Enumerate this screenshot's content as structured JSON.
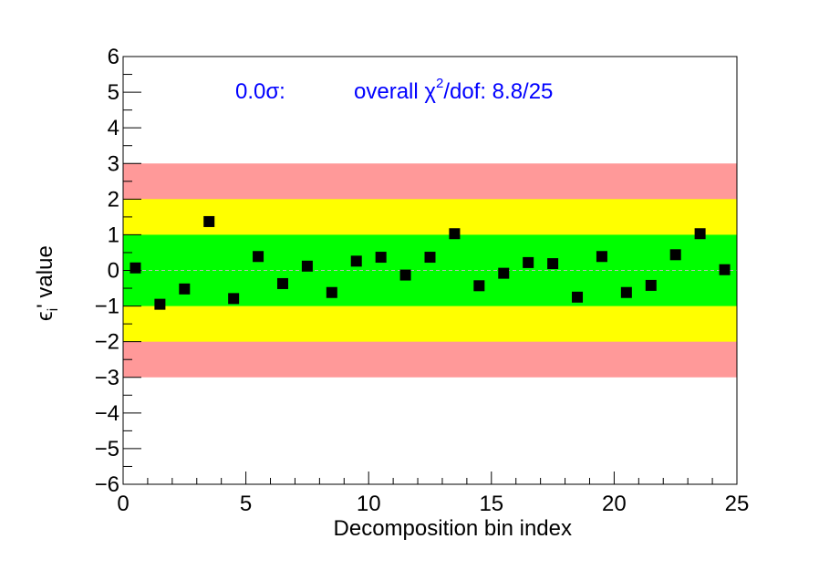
{
  "chart_data": {
    "type": "scatter",
    "xlabel": "Decomposition bin index",
    "ylabel_main": "ϵ",
    "ylabel_sub": "i",
    "ylabel_rest": "' value",
    "xlim": [
      0,
      25
    ],
    "ylim": [
      -6,
      6
    ],
    "x_ticks": [
      "0",
      "5",
      "10",
      "15",
      "20",
      "25"
    ],
    "y_ticks": [
      "−6",
      "−5",
      "−4",
      "−3",
      "−2",
      "−1",
      "0",
      "1",
      "2",
      "3",
      "4",
      "5",
      "6"
    ],
    "bands": [
      {
        "from": -3,
        "to": 3,
        "color": "#ff9999"
      },
      {
        "from": -2,
        "to": 2,
        "color": "#ffff00"
      },
      {
        "from": -1,
        "to": 1,
        "color": "#00ff00"
      }
    ],
    "annotation_sigma": "0.0σ:",
    "annotation_chi2_prefix": "overall χ",
    "annotation_chi2_sup": "2",
    "annotation_chi2_suffix": "/dof: 8.8/25",
    "annotation_color": "#0000ff",
    "marker_color": "#000000",
    "points": {
      "x": [
        0.5,
        1.5,
        2.5,
        3.5,
        4.5,
        5.5,
        6.5,
        7.5,
        8.5,
        9.5,
        10.5,
        11.5,
        12.5,
        13.5,
        14.5,
        15.5,
        16.5,
        17.5,
        18.5,
        19.5,
        20.5,
        21.5,
        22.5,
        23.5,
        24.5
      ],
      "y": [
        0.07,
        -0.95,
        -0.52,
        1.37,
        -0.79,
        0.39,
        -0.37,
        0.12,
        -0.62,
        0.26,
        0.37,
        -0.13,
        0.37,
        1.03,
        -0.43,
        -0.08,
        0.22,
        0.19,
        -0.75,
        0.39,
        -0.62,
        -0.42,
        0.44,
        1.03,
        0.02
      ]
    }
  }
}
